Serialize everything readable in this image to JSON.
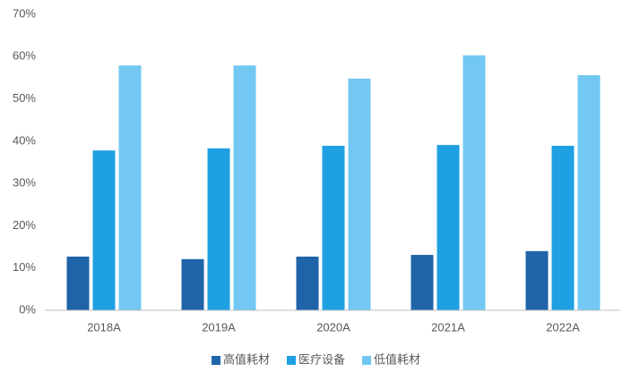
{
  "chart_data": {
    "type": "bar",
    "categories": [
      "2018A",
      "2019A",
      "2020A",
      "2021A",
      "2022A"
    ],
    "series": [
      {
        "name": "高值耗材",
        "color": "#1f63a8",
        "values": [
          12.7,
          12.1,
          12.7,
          13.1,
          14.0
        ]
      },
      {
        "name": "医疗设备",
        "color": "#1ea0e2",
        "values": [
          37.8,
          38.3,
          38.9,
          39.1,
          38.9
        ]
      },
      {
        "name": "低值耗材",
        "color": "#72c8f2",
        "values": [
          57.9,
          57.9,
          54.8,
          60.3,
          55.6
        ]
      }
    ],
    "ylim": [
      0,
      70
    ],
    "yticks": [
      {
        "value": 0,
        "label": "0%"
      },
      {
        "value": 10,
        "label": "10%"
      },
      {
        "value": 20,
        "label": "20%"
      },
      {
        "value": 30,
        "label": "30%"
      },
      {
        "value": 40,
        "label": "40%"
      },
      {
        "value": 50,
        "label": "50%"
      },
      {
        "value": 60,
        "label": "60%"
      },
      {
        "value": 70,
        "label": "70%"
      }
    ],
    "grid": false,
    "legend": "bottom"
  }
}
